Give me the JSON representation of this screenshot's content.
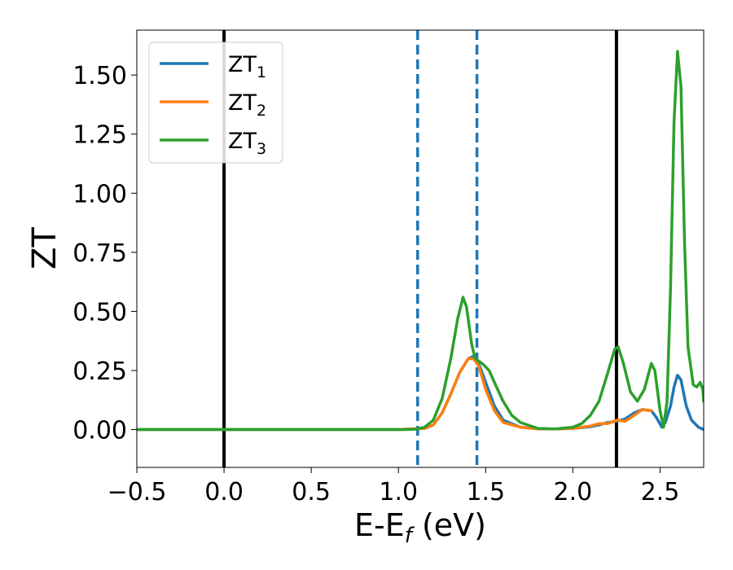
{
  "chart_data": {
    "type": "line",
    "xlabel": "E-E",
    "xlabel_sub": "f",
    "xlabel_unit": " (eV)",
    "ylabel": "ZT",
    "xlim": [
      -0.5,
      2.75
    ],
    "ylim": [
      -0.16,
      1.69
    ],
    "xticks": [
      -0.5,
      0.0,
      0.5,
      1.0,
      1.5,
      2.0,
      2.5
    ],
    "xtick_labels": [
      "−0.5",
      "0.0",
      "0.5",
      "1.0",
      "1.5",
      "2.0",
      "2.5"
    ],
    "yticks": [
      0.0,
      0.25,
      0.5,
      0.75,
      1.0,
      1.25,
      1.5
    ],
    "ytick_labels": [
      "0.00",
      "0.25",
      "0.50",
      "0.75",
      "1.00",
      "1.25",
      "1.50"
    ],
    "grid": false,
    "legend_position": "top-left",
    "vlines": [
      {
        "x": 0.0,
        "style": "solid",
        "color": "#000000"
      },
      {
        "x": 2.25,
        "style": "solid",
        "color": "#000000"
      },
      {
        "x": 1.11,
        "style": "dashed",
        "color": "#1f77b4"
      },
      {
        "x": 1.45,
        "style": "dashed",
        "color": "#1f77b4"
      }
    ],
    "series": [
      {
        "name": "ZT",
        "name_sub": "1",
        "color": "#1f77b4",
        "points": [
          [
            -0.5,
            0
          ],
          [
            1.0,
            0
          ],
          [
            1.15,
            0.005
          ],
          [
            1.2,
            0.02
          ],
          [
            1.25,
            0.07
          ],
          [
            1.3,
            0.15
          ],
          [
            1.35,
            0.24
          ],
          [
            1.4,
            0.3
          ],
          [
            1.43,
            0.31
          ],
          [
            1.46,
            0.28
          ],
          [
            1.5,
            0.2
          ],
          [
            1.55,
            0.1
          ],
          [
            1.6,
            0.04
          ],
          [
            1.7,
            0.01
          ],
          [
            1.8,
            0.003
          ],
          [
            1.9,
            0.003
          ],
          [
            2.0,
            0.005
          ],
          [
            2.1,
            0.012
          ],
          [
            2.15,
            0.02
          ],
          [
            2.2,
            0.03
          ],
          [
            2.25,
            0.035
          ],
          [
            2.3,
            0.045
          ],
          [
            2.35,
            0.07
          ],
          [
            2.4,
            0.085
          ],
          [
            2.45,
            0.08
          ],
          [
            2.48,
            0.05
          ],
          [
            2.51,
            0.01
          ],
          [
            2.53,
            0.03
          ],
          [
            2.56,
            0.1
          ],
          [
            2.58,
            0.18
          ],
          [
            2.6,
            0.23
          ],
          [
            2.62,
            0.21
          ],
          [
            2.65,
            0.1
          ],
          [
            2.68,
            0.04
          ],
          [
            2.72,
            0.01
          ],
          [
            2.75,
            0.0
          ]
        ]
      },
      {
        "name": "ZT",
        "name_sub": "2",
        "color": "#ff7f0e",
        "points": [
          [
            -0.5,
            0
          ],
          [
            1.0,
            0
          ],
          [
            1.15,
            0.005
          ],
          [
            1.2,
            0.02
          ],
          [
            1.25,
            0.07
          ],
          [
            1.3,
            0.15
          ],
          [
            1.35,
            0.24
          ],
          [
            1.4,
            0.3
          ],
          [
            1.43,
            0.3
          ],
          [
            1.46,
            0.27
          ],
          [
            1.5,
            0.17
          ],
          [
            1.55,
            0.08
          ],
          [
            1.6,
            0.03
          ],
          [
            1.7,
            0.01
          ],
          [
            1.8,
            0.003
          ],
          [
            1.9,
            0.003
          ],
          [
            2.0,
            0.005
          ],
          [
            2.1,
            0.015
          ],
          [
            2.15,
            0.025
          ],
          [
            2.2,
            0.025
          ],
          [
            2.25,
            0.04
          ],
          [
            2.3,
            0.035
          ],
          [
            2.35,
            0.06
          ],
          [
            2.4,
            0.085
          ],
          [
            2.45,
            0.08
          ]
        ]
      },
      {
        "name": "ZT",
        "name_sub": "3",
        "color": "#2ca02c",
        "points": [
          [
            -0.5,
            0
          ],
          [
            1.05,
            0
          ],
          [
            1.1,
            0.002
          ],
          [
            1.15,
            0.01
          ],
          [
            1.2,
            0.04
          ],
          [
            1.25,
            0.13
          ],
          [
            1.3,
            0.3
          ],
          [
            1.34,
            0.47
          ],
          [
            1.37,
            0.56
          ],
          [
            1.39,
            0.52
          ],
          [
            1.42,
            0.36
          ],
          [
            1.44,
            0.3
          ],
          [
            1.48,
            0.28
          ],
          [
            1.52,
            0.25
          ],
          [
            1.55,
            0.2
          ],
          [
            1.6,
            0.12
          ],
          [
            1.65,
            0.06
          ],
          [
            1.7,
            0.03
          ],
          [
            1.8,
            0.005
          ],
          [
            1.9,
            0.003
          ],
          [
            2.0,
            0.01
          ],
          [
            2.05,
            0.025
          ],
          [
            2.1,
            0.06
          ],
          [
            2.15,
            0.12
          ],
          [
            2.2,
            0.24
          ],
          [
            2.24,
            0.34
          ],
          [
            2.26,
            0.35
          ],
          [
            2.29,
            0.28
          ],
          [
            2.33,
            0.16
          ],
          [
            2.37,
            0.12
          ],
          [
            2.41,
            0.17
          ],
          [
            2.45,
            0.28
          ],
          [
            2.47,
            0.25
          ],
          [
            2.5,
            0.08
          ],
          [
            2.52,
            0.01
          ],
          [
            2.54,
            0.12
          ],
          [
            2.56,
            0.6
          ],
          [
            2.58,
            1.3
          ],
          [
            2.6,
            1.6
          ],
          [
            2.62,
            1.45
          ],
          [
            2.64,
            0.8
          ],
          [
            2.66,
            0.35
          ],
          [
            2.69,
            0.19
          ],
          [
            2.71,
            0.18
          ],
          [
            2.73,
            0.2
          ],
          [
            2.745,
            0.17
          ],
          [
            2.75,
            0.12
          ]
        ]
      }
    ]
  }
}
